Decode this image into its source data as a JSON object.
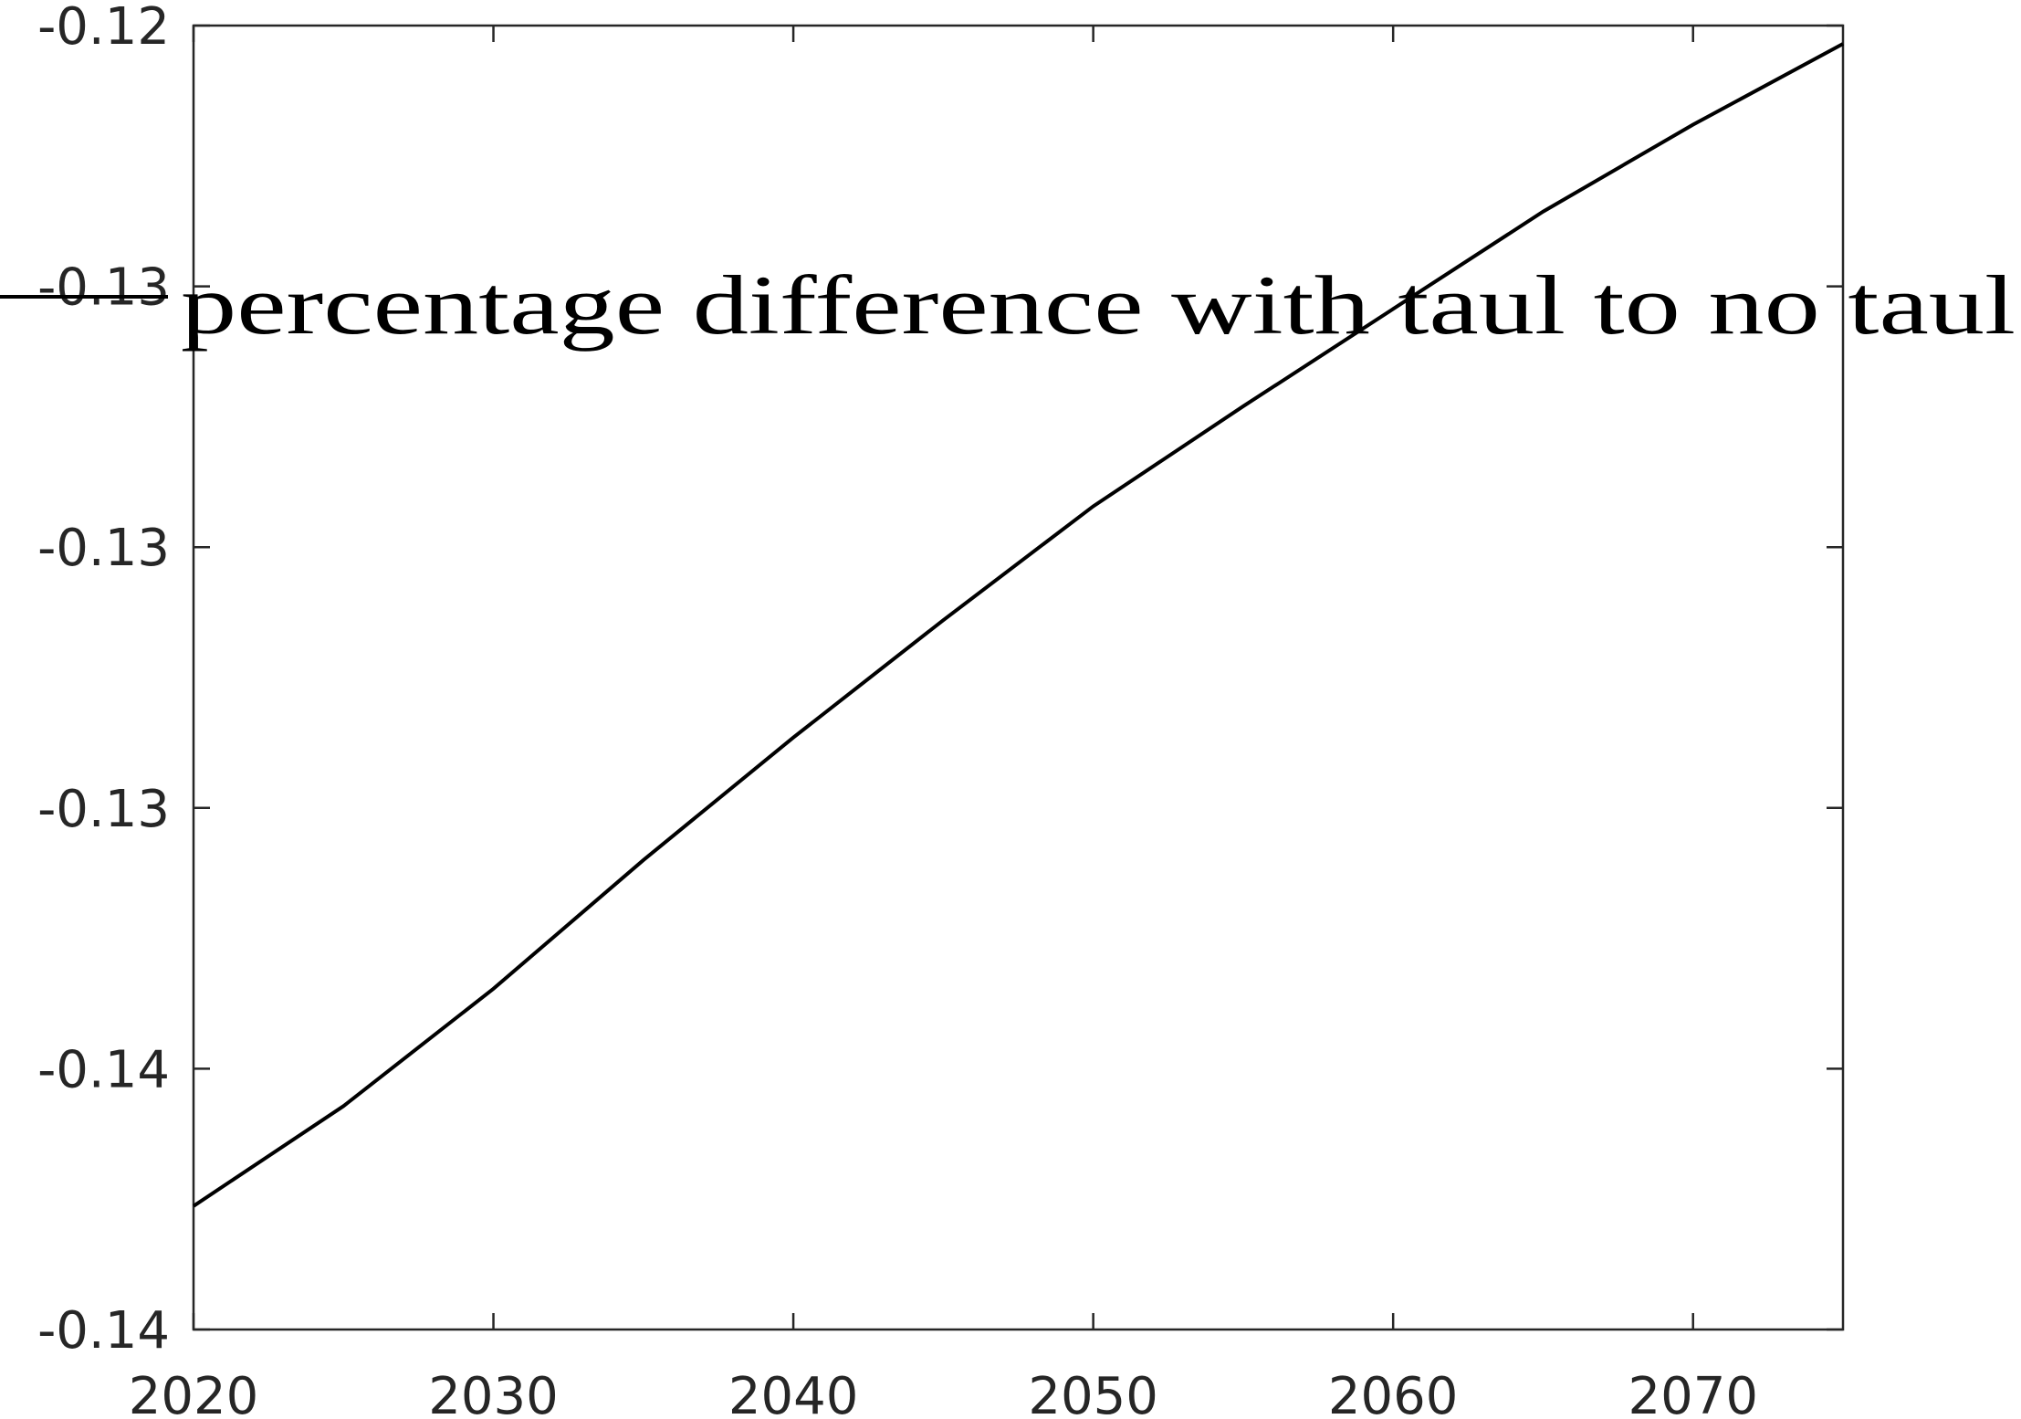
{
  "chart_data": {
    "type": "line",
    "x": [
      2020,
      2025,
      2030,
      2035,
      2040,
      2045,
      2050,
      2055,
      2060,
      2065,
      2070,
      2075
    ],
    "series": [
      {
        "name": "percentage difference with taul to no taul",
        "color": "#000000",
        "values": [
          -0.13758,
          -0.13643,
          -0.13508,
          -0.1336,
          -0.13219,
          -0.13084,
          -0.12953,
          -0.12838,
          -0.12726,
          -0.12614,
          -0.12514,
          -0.12421
        ]
      }
    ],
    "xlim": [
      2020,
      2075
    ],
    "xticks": [
      2020,
      2030,
      2040,
      2050,
      2060,
      2070
    ],
    "ylim": [
      -0.139,
      -0.124
    ],
    "yticks": [
      {
        "value": -0.139,
        "label": "-0.14"
      },
      {
        "value": -0.136,
        "label": "-0.14"
      },
      {
        "value": -0.133,
        "label": "-0.13"
      },
      {
        "value": -0.13,
        "label": "-0.13"
      },
      {
        "value": -0.127,
        "label": "-0.13"
      },
      {
        "value": -0.124,
        "label": "-0.12"
      }
    ],
    "grid": false,
    "legend": "north"
  }
}
